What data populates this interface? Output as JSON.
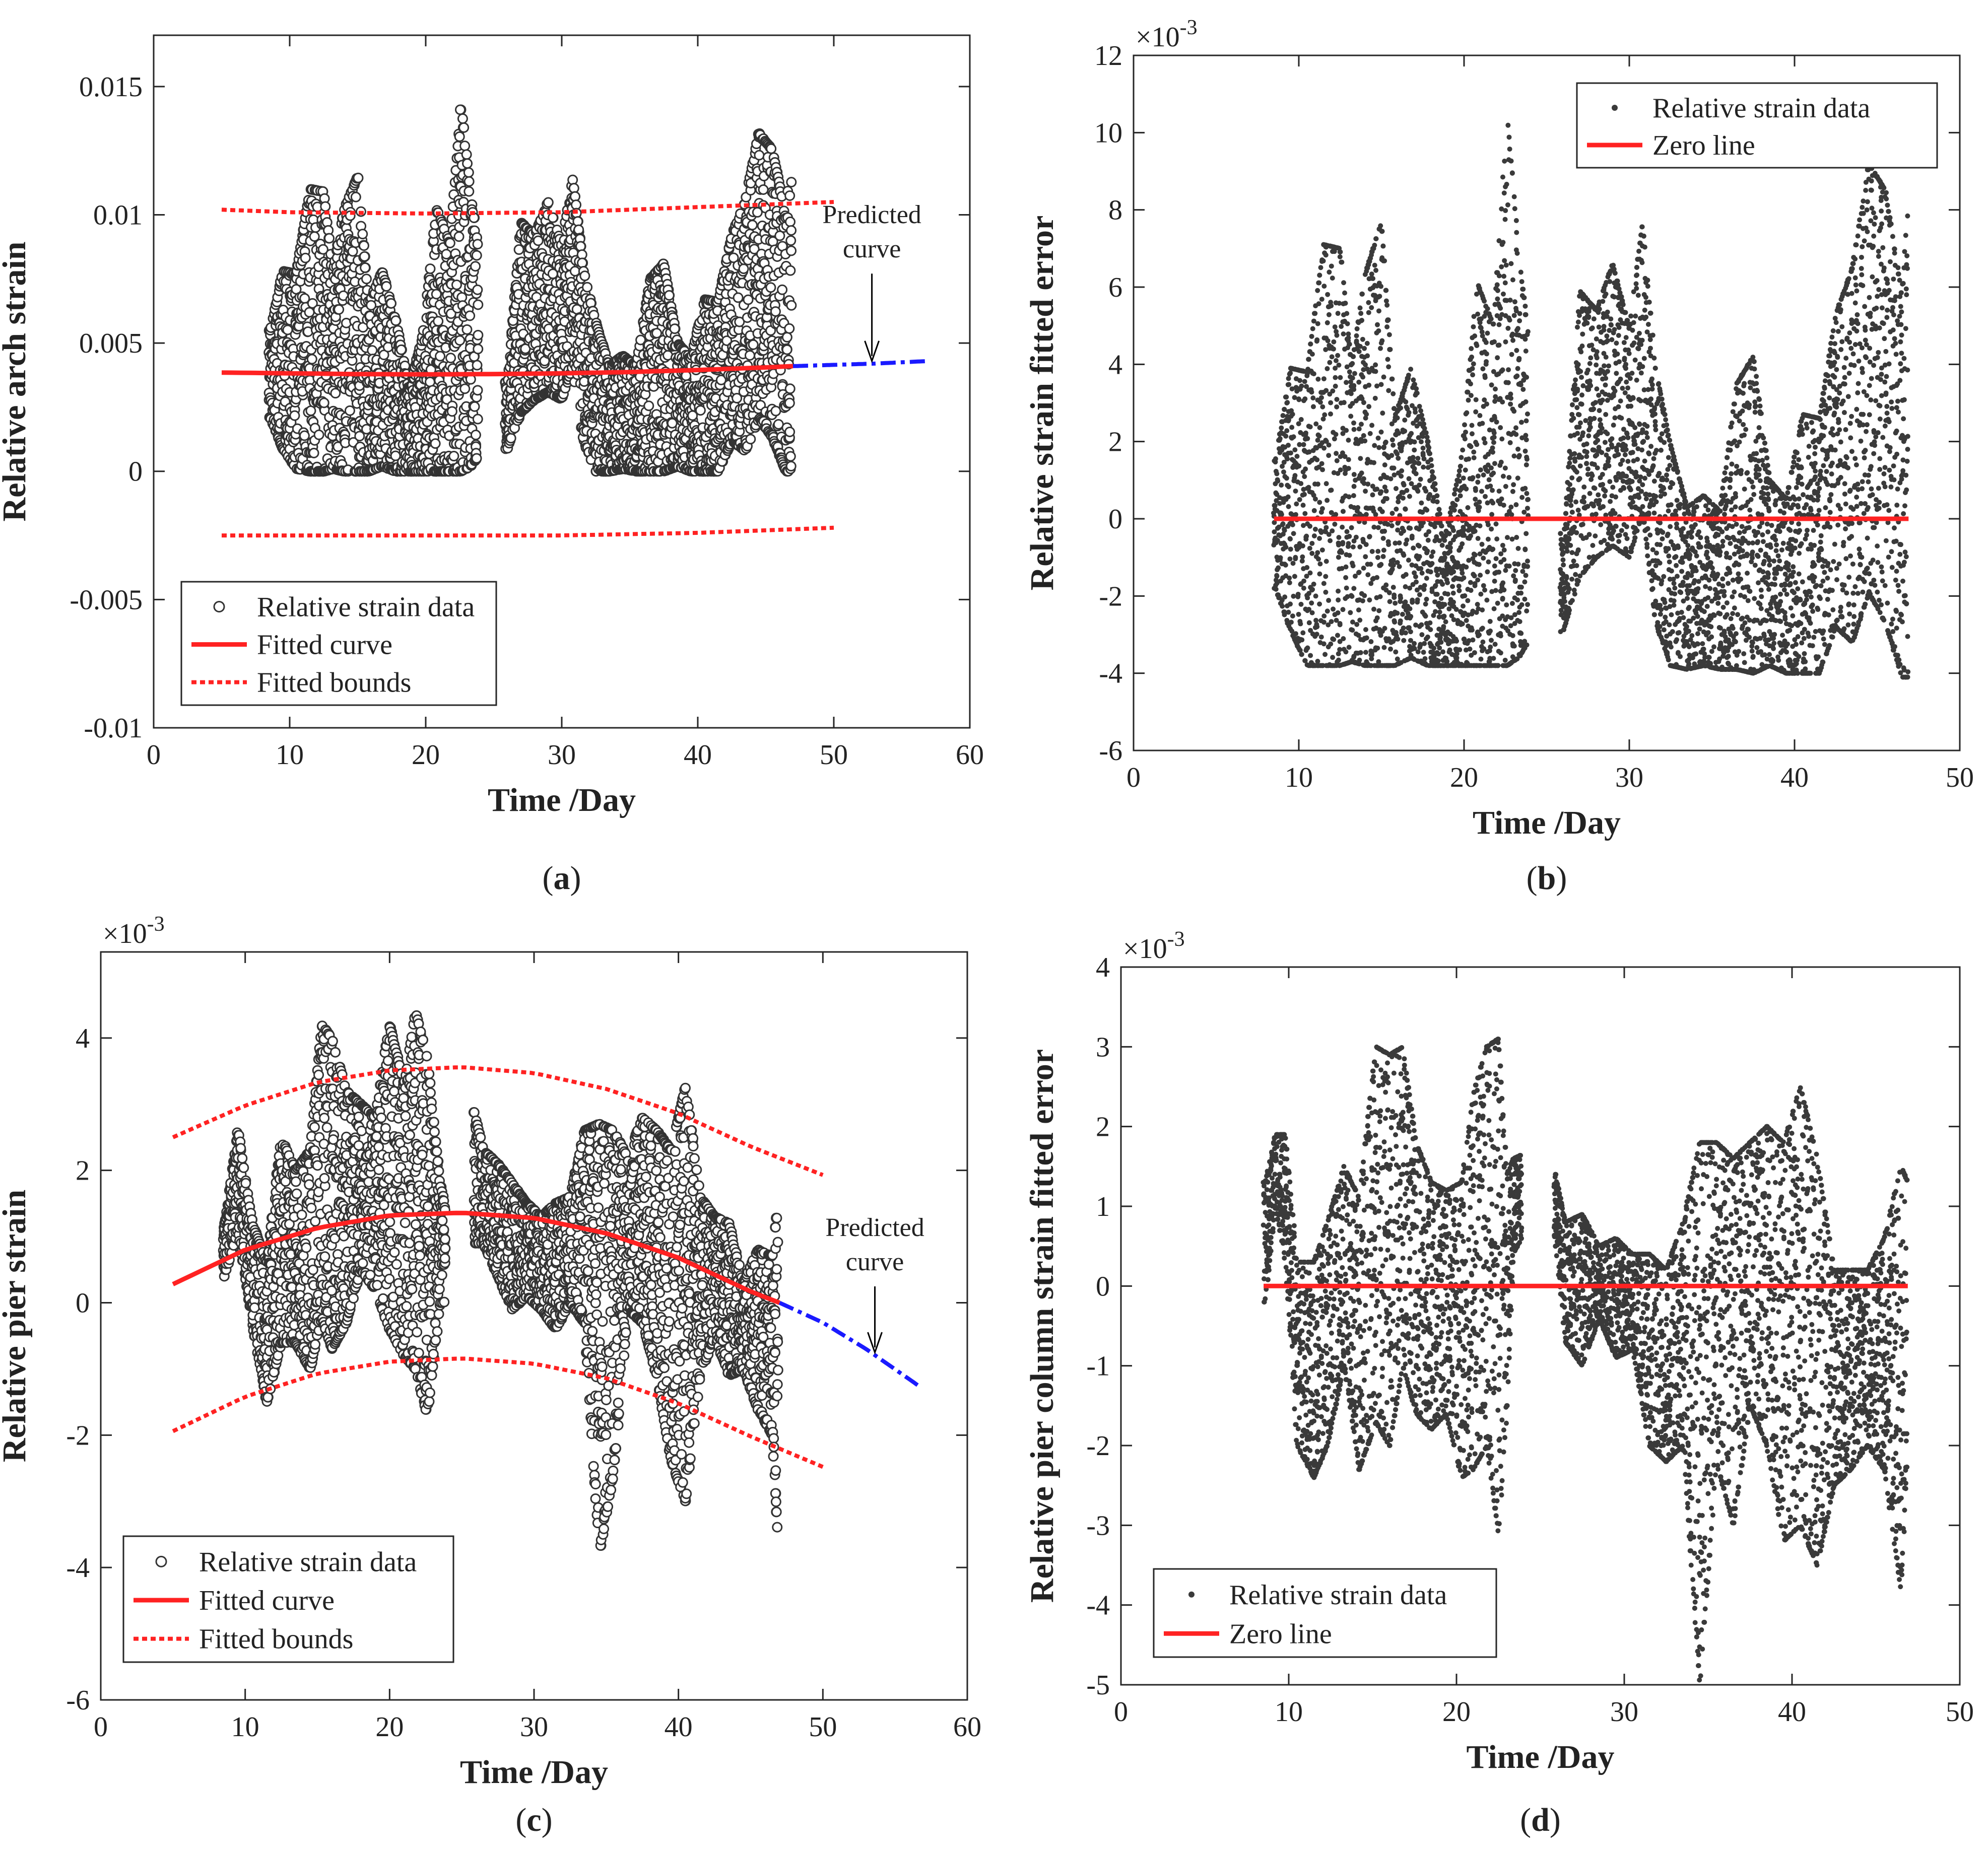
{
  "chart_data": [
    {
      "id": "a",
      "type": "scatter",
      "caption": "(a)",
      "xlabel": "Time /Day",
      "ylabel": "Relative arch strain",
      "xlim": [
        0,
        60
      ],
      "ylim": [
        -0.01,
        0.017
      ],
      "xticks": [
        0,
        10,
        20,
        30,
        40,
        50,
        60
      ],
      "xtick_labels": [
        "0",
        "10",
        "20",
        "30",
        "40",
        "50",
        "60"
      ],
      "yticks": [
        -0.01,
        -0.005,
        0,
        0.005,
        0.01,
        0.015
      ],
      "ytick_labels": [
        "-0.01",
        "-0.005",
        "0",
        "0.005",
        "0.01",
        "0.015"
      ],
      "exponent_label": "",
      "annotation": [
        "Predicted",
        "curve"
      ],
      "annotation_arrow": {
        "text_at": [
          52.8,
          0.0081
        ],
        "tip_at": [
          52.8,
          0.0043
        ]
      },
      "legend": {
        "position": "bottom-left",
        "entries": [
          "Relative strain data",
          "Fitted curve",
          "Fitted bounds"
        ]
      },
      "colors": {
        "data": "#333333",
        "fit": "#ff2222",
        "bounds": "#ff2222",
        "predicted": "#1a1aff"
      },
      "data_range": [
        8.5,
        46.9
      ],
      "series": [
        {
          "name": "Fitted curve",
          "x": [
            5,
            10,
            15,
            20,
            25,
            30,
            35,
            40,
            45,
            47
          ],
          "values": [
            0.00385,
            0.00382,
            0.00379,
            0.00378,
            0.00379,
            0.00382,
            0.00387,
            0.00395,
            0.00405,
            0.0041
          ]
        },
        {
          "name": "Upper fitted bound",
          "x": [
            5,
            10,
            20,
            30,
            40,
            50
          ],
          "values": [
            0.0102,
            0.0101,
            0.01005,
            0.0101,
            0.0103,
            0.0105
          ]
        },
        {
          "name": "Lower fitted bound",
          "x": [
            5,
            10,
            20,
            30,
            40,
            50
          ],
          "values": [
            -0.0025,
            -0.0025,
            -0.0025,
            -0.0025,
            -0.0024,
            -0.0022
          ]
        },
        {
          "name": "Predicted curve",
          "x": [
            47,
            50,
            53,
            57
          ],
          "values": [
            0.0041,
            0.00415,
            0.0042,
            0.0043
          ]
        }
      ],
      "envelope": {
        "x": [
          8.6,
          9.5,
          10.5,
          11.5,
          12.5,
          13.2,
          14.0,
          15.0,
          15.8,
          16.8,
          17.8,
          18.8,
          19.8,
          20.8,
          21.8,
          22.6,
          23.3,
          23.9,
          26.0,
          27.0,
          28.0,
          29.0,
          30.0,
          30.8,
          31.6,
          32.5,
          33.5,
          34.5,
          35.5,
          36.5,
          37.5,
          38.5,
          39.5,
          40.5,
          41.5,
          42.5,
          43.5,
          44.5,
          45.5,
          46.5,
          46.9
        ],
        "high": [
          0.0055,
          0.0078,
          0.0077,
          0.011,
          0.0109,
          0.0078,
          0.0102,
          0.0115,
          0.0065,
          0.0078,
          0.0059,
          0.0032,
          0.0053,
          0.0102,
          0.0089,
          0.0143,
          0.0108,
          0.0086,
          0.0031,
          0.0097,
          0.0092,
          0.0105,
          0.0088,
          0.0115,
          0.0078,
          0.0058,
          0.0041,
          0.0045,
          0.0041,
          0.0075,
          0.0081,
          0.005,
          0.0044,
          0.0067,
          0.0066,
          0.0092,
          0.0105,
          0.0132,
          0.0125,
          0.0098,
          0.0128
        ],
        "low": [
          0.0021,
          0.0009,
          0.0001,
          0.0,
          0.0,
          0.0001,
          0.0,
          0.0,
          0.0,
          0.0002,
          0.0,
          0.0,
          0.0,
          0.0,
          0.0,
          0.0,
          0.0002,
          0.0006,
          0.0009,
          0.0023,
          0.0028,
          0.0031,
          0.0028,
          0.0041,
          0.0012,
          0.0,
          0.0,
          0.0001,
          0.0,
          0.0,
          0.0,
          0.0002,
          0.0,
          0.0,
          0.0,
          0.0012,
          0.0008,
          0.0021,
          0.0013,
          0.0,
          0.0
        ]
      }
    },
    {
      "id": "b",
      "type": "scatter",
      "caption": "(b)",
      "xlabel": "Time /Day",
      "ylabel": "Relative strain fitted error",
      "xlim": [
        0,
        50
      ],
      "ylim": [
        -6,
        12
      ],
      "xticks": [
        0,
        10,
        20,
        30,
        40,
        50
      ],
      "xtick_labels": [
        "0",
        "10",
        "20",
        "30",
        "40",
        "50"
      ],
      "yticks": [
        -6,
        -4,
        -2,
        0,
        2,
        4,
        6,
        8,
        10,
        12
      ],
      "ytick_labels": [
        "-6",
        "-4",
        "-2",
        "0",
        "2",
        "4",
        "6",
        "8",
        "10",
        "12"
      ],
      "exponent_label": "×10",
      "exponent": "-3",
      "legend": {
        "position": "top-right",
        "entries": [
          "Relative strain data",
          "Zero line"
        ]
      },
      "colors": {
        "data": "#3a3a3a",
        "zero": "#ff2222"
      },
      "data_range": [
        8.5,
        46.9
      ],
      "series": [
        {
          "name": "Zero line",
          "x": [
            8.5,
            46.9
          ],
          "values": [
            0,
            0
          ]
        }
      ],
      "envelope": {
        "x": [
          8.6,
          9.5,
          10.5,
          11.5,
          12.5,
          13.2,
          14.0,
          15.0,
          15.8,
          16.8,
          17.8,
          18.8,
          19.8,
          20.8,
          21.8,
          22.6,
          23.3,
          23.9,
          26.0,
          27.0,
          28.0,
          29.0,
          30.0,
          30.8,
          31.6,
          32.5,
          33.5,
          34.5,
          35.5,
          36.5,
          37.5,
          38.5,
          39.5,
          40.5,
          41.5,
          42.5,
          43.5,
          44.5,
          45.5,
          46.5,
          46.9
        ],
        "high": [
          1.5,
          3.9,
          3.8,
          7.1,
          7.0,
          3.9,
          6.3,
          7.7,
          2.6,
          3.9,
          2.0,
          -0.6,
          1.4,
          6.1,
          5.0,
          10.5,
          6.9,
          4.7,
          -0.8,
          5.9,
          5.4,
          6.6,
          4.9,
          7.7,
          3.9,
          1.9,
          0.3,
          0.6,
          0.2,
          3.5,
          4.2,
          1.0,
          0.5,
          2.7,
          2.6,
          5.3,
          6.5,
          9.2,
          8.5,
          5.8,
          8.6
        ],
        "low": [
          -1.8,
          -2.9,
          -3.8,
          -3.8,
          -3.8,
          -3.7,
          -3.8,
          -3.8,
          -3.8,
          -3.6,
          -3.8,
          -3.8,
          -3.8,
          -3.8,
          -3.8,
          -3.8,
          -3.6,
          -3.2,
          -2.9,
          -1.5,
          -1.0,
          -0.7,
          -1.0,
          0.2,
          -2.7,
          -3.8,
          -3.9,
          -3.8,
          -3.9,
          -3.9,
          -4.0,
          -3.8,
          -4.0,
          -4.0,
          -4.0,
          -2.8,
          -3.2,
          -1.9,
          -2.7,
          -4.1,
          -4.1
        ]
      }
    },
    {
      "id": "c",
      "type": "scatter",
      "caption": "(c)",
      "xlabel": "Time /Day",
      "ylabel": "Relative pier strain",
      "xlim": [
        0,
        60
      ],
      "ylim": [
        -6,
        5.3
      ],
      "xticks": [
        0,
        10,
        20,
        30,
        40,
        50,
        60
      ],
      "xtick_labels": [
        "0",
        "10",
        "20",
        "30",
        "40",
        "50",
        "60"
      ],
      "yticks": [
        -6,
        -4,
        -2,
        0,
        2,
        4
      ],
      "ytick_labels": [
        "-6",
        "-4",
        "-2",
        "0",
        "2",
        "4"
      ],
      "exponent_label": "×10",
      "exponent": "-3",
      "annotation": [
        "Predicted",
        "curve"
      ],
      "annotation_arrow": {
        "text_at": [
          53.6,
          0.4
        ],
        "tip_at": [
          53.6,
          -0.75
        ]
      },
      "legend": {
        "position": "bottom-left",
        "entries": [
          "Relative strain data",
          "Fitted curve",
          "Fitted bounds"
        ]
      },
      "colors": {
        "data": "#333333",
        "fit": "#ff2222",
        "bounds": "#ff2222",
        "predicted": "#1a1aff"
      },
      "data_range": [
        8.5,
        46.9
      ],
      "series": [
        {
          "name": "Fitted curve",
          "x": [
            5,
            10,
            15,
            20,
            25,
            30,
            35,
            40,
            45,
            47
          ],
          "values": [
            0.28,
            0.8,
            1.13,
            1.32,
            1.36,
            1.28,
            1.05,
            0.68,
            0.17,
            0.0
          ]
        },
        {
          "name": "Upper fitted bound",
          "x": [
            5,
            10,
            15,
            20,
            25,
            30,
            35,
            40,
            45,
            50
          ],
          "values": [
            2.5,
            2.98,
            3.33,
            3.51,
            3.56,
            3.47,
            3.23,
            2.86,
            2.36,
            1.93
          ]
        },
        {
          "name": "Lower fitted bound",
          "x": [
            5,
            10,
            15,
            20,
            25,
            30,
            35,
            40,
            45,
            50
          ],
          "values": [
            -1.94,
            -1.42,
            -1.07,
            -0.89,
            -0.84,
            -0.92,
            -1.14,
            -1.52,
            -2.02,
            -2.48
          ]
        },
        {
          "name": "Predicted curve",
          "x": [
            47,
            50,
            53,
            56.6
          ],
          "values": [
            0.0,
            -0.3,
            -0.7,
            -1.25
          ]
        }
      ],
      "envelope": {
        "x": [
          8.6,
          9.5,
          10.5,
          11.5,
          12.5,
          13.5,
          14.5,
          15.3,
          16.0,
          17.0,
          18.0,
          19.0,
          20.0,
          21.0,
          21.8,
          22.6,
          23.5,
          24.5,
          25.5,
          26.5,
          27.5,
          28.5,
          29.5,
          30.5,
          31.5,
          32.5,
          33.5,
          34.5,
          35.5,
          36.5,
          37.5,
          38.5,
          39.5,
          40.5,
          41.5,
          42.5,
          43.5,
          44.5,
          45.5,
          46.5,
          46.9
        ],
        "high": [
          1.2,
          2.6,
          1.2,
          0.6,
          2.5,
          2.0,
          2.3,
          4.2,
          4.0,
          3.2,
          3.0,
          2.8,
          4.2,
          3.3,
          4.4,
          3.7,
          1.8,
          0.8,
          3.2,
          2.3,
          2.1,
          1.8,
          1.5,
          1.3,
          1.5,
          1.6,
          2.6,
          2.7,
          2.6,
          2.2,
          2.8,
          2.6,
          2.3,
          3.3,
          1.6,
          1.3,
          1.2,
          0.3,
          0.8,
          0.7,
          1.5
        ],
        "low": [
          0.4,
          1.1,
          -0.3,
          -1.5,
          -0.6,
          -0.6,
          -1.0,
          -0.2,
          -0.7,
          -0.3,
          0.5,
          0.2,
          -0.4,
          -0.8,
          -1.0,
          -1.7,
          0.0,
          0.0,
          0.9,
          0.9,
          0.4,
          -0.1,
          0.1,
          -0.1,
          -0.4,
          0.0,
          -0.3,
          -3.8,
          -2.6,
          -0.1,
          -0.3,
          -1.1,
          -2.4,
          -3.0,
          -1.1,
          -0.5,
          -1.1,
          -1.0,
          -1.6,
          -2.0,
          -3.6
        ]
      }
    },
    {
      "id": "d",
      "type": "scatter",
      "caption": "(d)",
      "xlabel": "Time /Day",
      "ylabel": "Relative pier column strain fitted error",
      "xlim": [
        0,
        50
      ],
      "ylim": [
        -5,
        4
      ],
      "xticks": [
        0,
        10,
        20,
        30,
        40,
        50
      ],
      "xtick_labels": [
        "0",
        "10",
        "20",
        "30",
        "40",
        "50"
      ],
      "yticks": [
        -5,
        -4,
        -3,
        -2,
        -1,
        0,
        1,
        2,
        3,
        4
      ],
      "ytick_labels": [
        "-5",
        "-4",
        "-3",
        "-2",
        "-1",
        "0",
        "1",
        "2",
        "3",
        "4"
      ],
      "exponent_label": "×10",
      "exponent": "-3",
      "legend": {
        "position": "bottom-left",
        "entries": [
          "Relative strain data",
          "Zero line"
        ]
      },
      "colors": {
        "data": "#3a3a3a",
        "zero": "#ff2222"
      },
      "data_range": [
        8.5,
        46.9
      ],
      "series": [
        {
          "name": "Zero line",
          "x": [
            8.5,
            46.9
          ],
          "values": [
            0,
            0
          ]
        }
      ],
      "envelope": {
        "x": [
          8.6,
          9.2,
          9.8,
          10.5,
          11.5,
          12.3,
          13.3,
          14.2,
          15.2,
          16.0,
          16.8,
          17.6,
          18.5,
          19.4,
          20.3,
          21.0,
          21.8,
          22.5,
          23.0,
          23.4,
          25.5,
          26.5,
          27.5,
          28.5,
          29.5,
          30.5,
          31.5,
          32.5,
          33.5,
          34.5,
          35.5,
          36.5,
          37.5,
          38.5,
          39.5,
          40.5,
          41.5,
          42.5,
          43.5,
          44.5,
          45.5,
          46.5,
          46.9
        ],
        "high": [
          1.3,
          1.9,
          1.9,
          0.3,
          0.3,
          0.8,
          1.5,
          1.1,
          3.0,
          2.9,
          3.0,
          1.8,
          1.3,
          1.2,
          1.3,
          2.4,
          3.0,
          3.1,
          1.4,
          1.6,
          1.8,
          0.8,
          0.9,
          0.5,
          0.6,
          0.4,
          0.4,
          0.2,
          0.8,
          1.8,
          1.8,
          1.6,
          1.8,
          2.0,
          1.8,
          2.5,
          1.6,
          0.2,
          0.2,
          0.2,
          0.6,
          1.5,
          1.3
        ],
        "low": [
          -0.2,
          1.0,
          0.3,
          -2.0,
          -2.4,
          -2.0,
          -1.0,
          -2.3,
          -1.7,
          -2.0,
          -1.0,
          -1.6,
          -1.8,
          -1.6,
          -2.4,
          -2.3,
          -2.0,
          -3.1,
          -1.6,
          0.4,
          1.3,
          -0.7,
          -1.0,
          -0.4,
          -0.9,
          -0.8,
          -2.0,
          -2.2,
          -2.0,
          -5.0,
          -2.2,
          -3.0,
          -1.5,
          -2.0,
          -3.2,
          -3.0,
          -3.5,
          -2.5,
          -2.3,
          -2.0,
          -2.3,
          -3.8,
          -2.0
        ]
      }
    }
  ],
  "panel_captions": [
    "(a)",
    "(b)",
    "(c)",
    "(d)"
  ]
}
